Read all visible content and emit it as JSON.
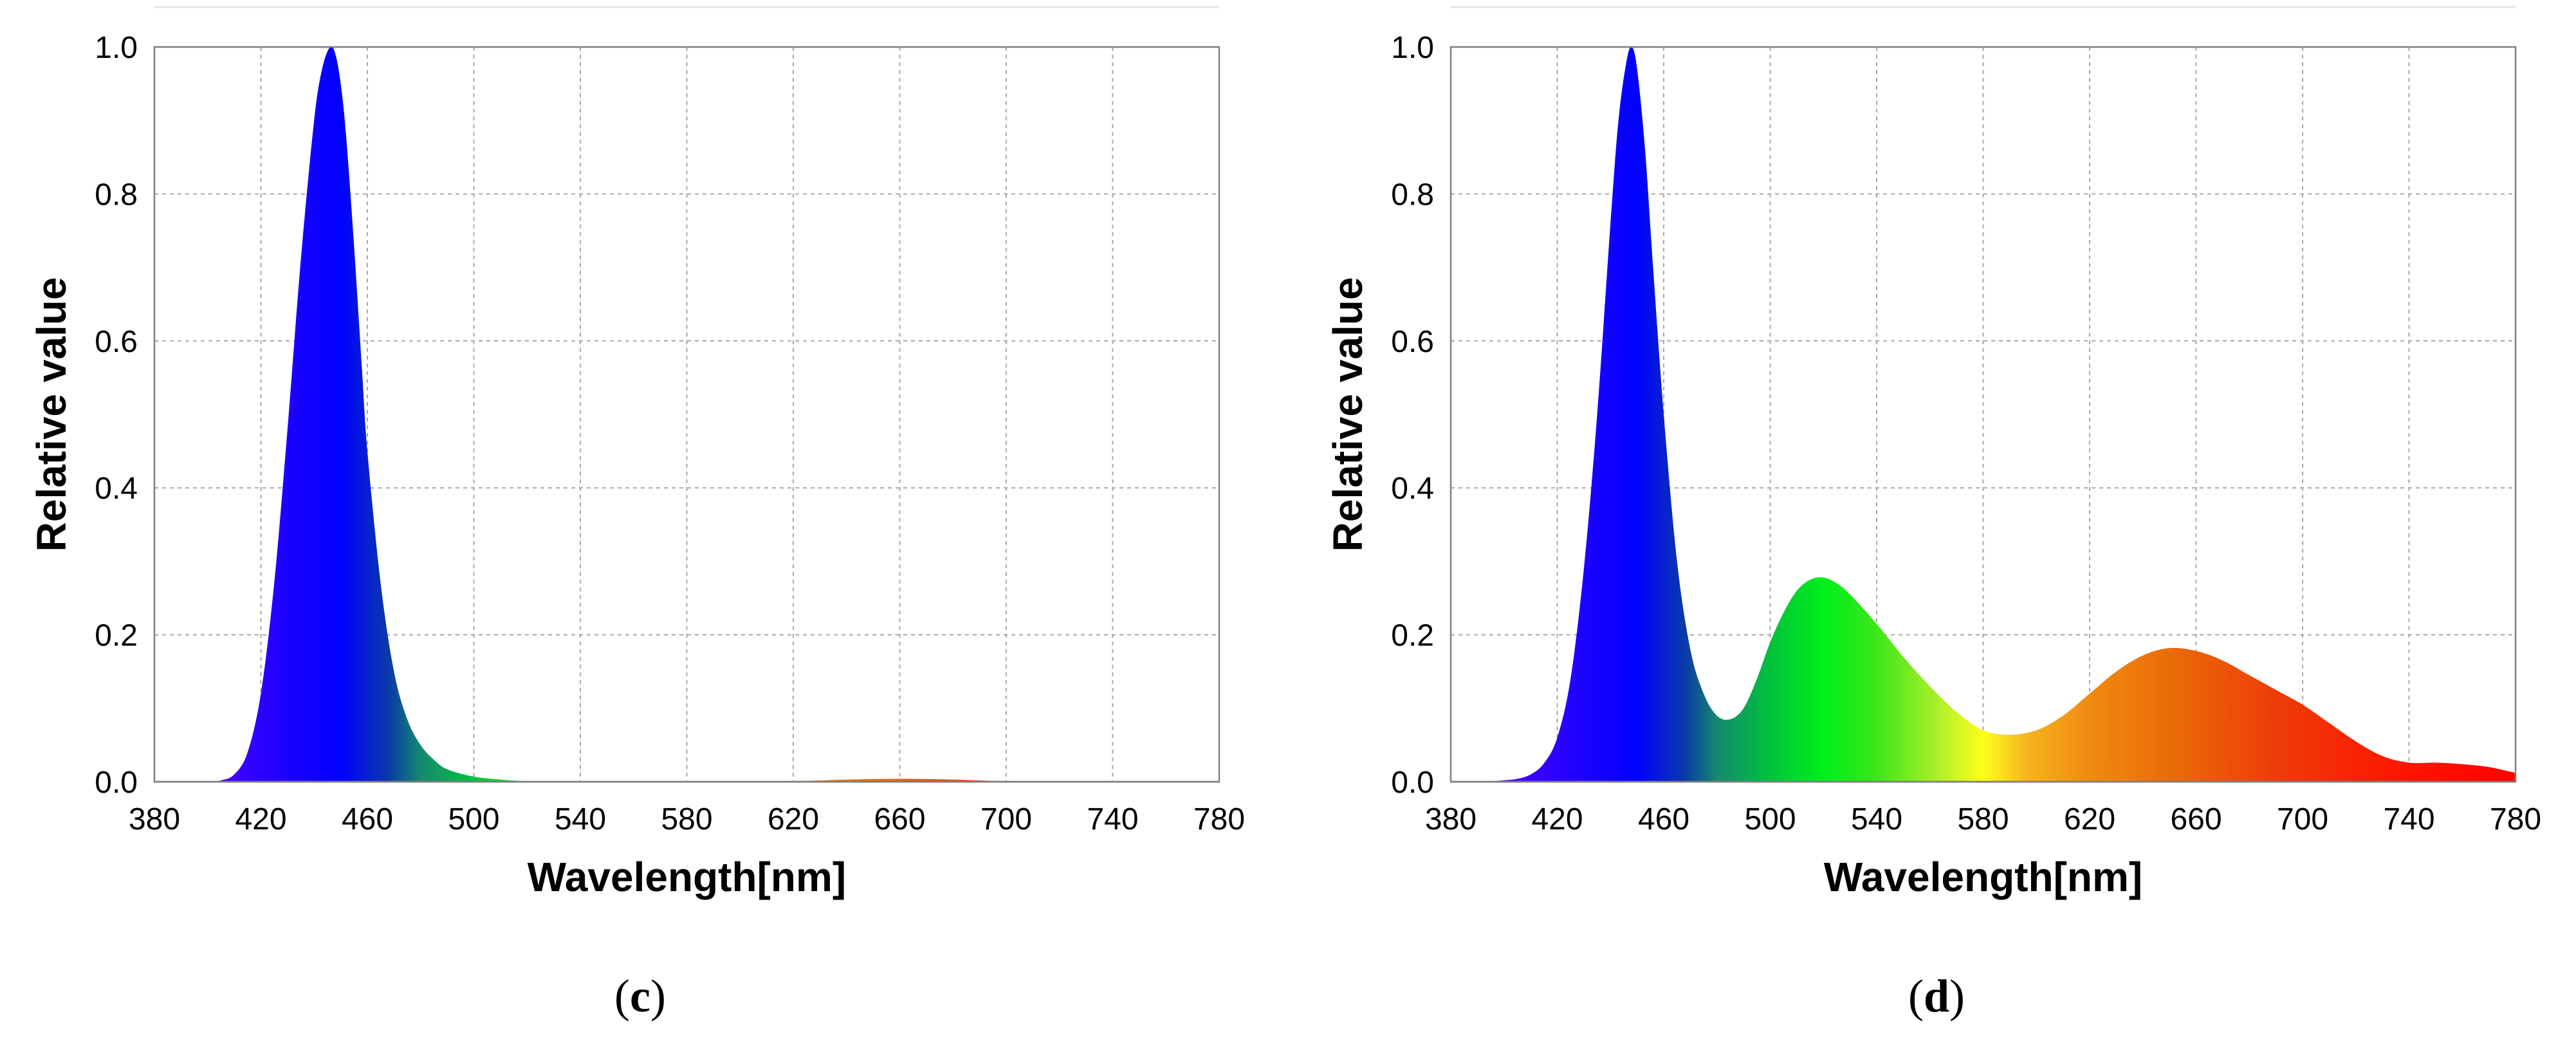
{
  "chart_data": [
    {
      "type": "area",
      "panel_label": "(c)",
      "panel_letter": "c",
      "xlabel": "Wavelength[nm]",
      "ylabel": "Relative value",
      "xlim": [
        380,
        780
      ],
      "ylim": [
        0,
        1
      ],
      "xticks": [
        380,
        420,
        460,
        500,
        540,
        580,
        620,
        660,
        700,
        740,
        780
      ],
      "yticks": [
        "0.0",
        "0.2",
        "0.4",
        "0.6",
        "0.8",
        "1.0"
      ],
      "grid": true,
      "fill": "spectral",
      "x": [
        380,
        400,
        405,
        410,
        415,
        420,
        425,
        430,
        435,
        440,
        443,
        446,
        448,
        450,
        452,
        455,
        458,
        460,
        465,
        470,
        475,
        480,
        485,
        490,
        500,
        510,
        520,
        540,
        580,
        620,
        640,
        660,
        680,
        700,
        740,
        780
      ],
      "values": [
        0,
        0,
        0.002,
        0.01,
        0.04,
        0.12,
        0.27,
        0.48,
        0.71,
        0.9,
        0.97,
        1.0,
        0.99,
        0.95,
        0.88,
        0.73,
        0.56,
        0.45,
        0.27,
        0.15,
        0.085,
        0.05,
        0.03,
        0.017,
        0.007,
        0.003,
        0.001,
        0,
        0,
        0.001,
        0.003,
        0.004,
        0.003,
        0.001,
        0,
        0
      ]
    },
    {
      "type": "area",
      "panel_label": "(d)",
      "panel_letter": "d",
      "xlabel": "Wavelength[nm]",
      "ylabel": "Relative value",
      "xlim": [
        380,
        780
      ],
      "ylim": [
        0,
        1
      ],
      "xticks": [
        380,
        420,
        460,
        500,
        540,
        580,
        620,
        660,
        700,
        740,
        780
      ],
      "yticks": [
        "0.0",
        "0.2",
        "0.4",
        "0.6",
        "0.8",
        "1.0"
      ],
      "grid": true,
      "fill": "spectral",
      "x": [
        380,
        390,
        400,
        405,
        410,
        415,
        420,
        425,
        430,
        435,
        440,
        443,
        446,
        448,
        450,
        453,
        456,
        460,
        465,
        470,
        475,
        480,
        485,
        490,
        495,
        500,
        505,
        510,
        515,
        520,
        525,
        530,
        540,
        550,
        560,
        570,
        580,
        590,
        600,
        610,
        620,
        630,
        640,
        650,
        660,
        670,
        680,
        690,
        700,
        710,
        720,
        730,
        740,
        750,
        760,
        770,
        780
      ],
      "values": [
        0,
        0,
        0.002,
        0.004,
        0.01,
        0.025,
        0.06,
        0.14,
        0.29,
        0.5,
        0.76,
        0.9,
        0.98,
        1.0,
        0.97,
        0.86,
        0.7,
        0.5,
        0.3,
        0.18,
        0.12,
        0.09,
        0.085,
        0.1,
        0.14,
        0.19,
        0.23,
        0.26,
        0.275,
        0.278,
        0.27,
        0.255,
        0.215,
        0.17,
        0.13,
        0.095,
        0.07,
        0.064,
        0.07,
        0.09,
        0.12,
        0.15,
        0.172,
        0.182,
        0.178,
        0.165,
        0.145,
        0.125,
        0.105,
        0.08,
        0.055,
        0.035,
        0.026,
        0.026,
        0.024,
        0.02,
        0.012
      ]
    }
  ]
}
